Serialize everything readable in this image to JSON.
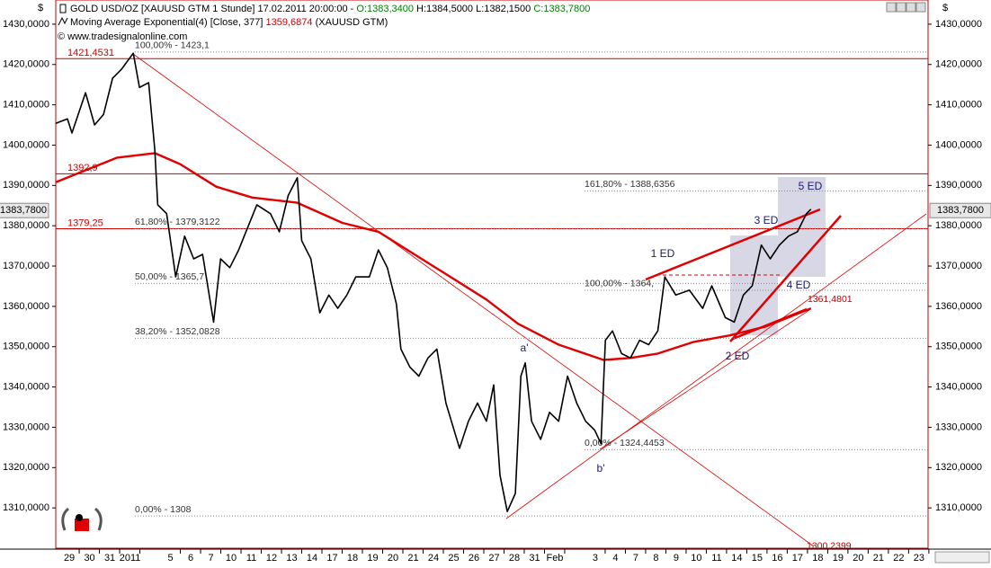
{
  "chart_data": {
    "type": "line",
    "currency": "$",
    "header": {
      "instrument": "[XAUUSD GTM  1 Stunde] 17.02.2011 20:00:00 -",
      "open": "O:1383,3400",
      "high_low": "H:1384,5000 L:1382,1500",
      "close": "C:1383,7800",
      "ma_source": "(XAUUSD GTM)",
      "copyright": "© www.tradesignalonline.com"
    },
    "ma_last": {
      "value": 1359.6874,
      "label": "1359,6874"
    },
    "last_price": {
      "value": 1383.78,
      "label": "1383,7800"
    },
    "xlim": [
      -0.67,
      42.45
    ],
    "xticks": [
      {
        "value": 0,
        "label": "29"
      },
      {
        "value": 1,
        "label": "30"
      },
      {
        "value": 2,
        "label": "31"
      },
      {
        "value": 3,
        "label": "2011"
      },
      {
        "value": 5,
        "label": "5"
      },
      {
        "value": 6,
        "label": "6"
      },
      {
        "value": 7,
        "label": "7"
      },
      {
        "value": 8,
        "label": "10"
      },
      {
        "value": 9,
        "label": "11"
      },
      {
        "value": 10,
        "label": "12"
      },
      {
        "value": 11,
        "label": "13"
      },
      {
        "value": 12,
        "label": "14"
      },
      {
        "value": 13,
        "label": "17"
      },
      {
        "value": 14,
        "label": "18"
      },
      {
        "value": 15,
        "label": "19"
      },
      {
        "value": 16,
        "label": "20"
      },
      {
        "value": 17,
        "label": "21"
      },
      {
        "value": 18,
        "label": "24"
      },
      {
        "value": 19,
        "label": "25"
      },
      {
        "value": 20,
        "label": "26"
      },
      {
        "value": 21,
        "label": "27"
      },
      {
        "value": 22,
        "label": "28"
      },
      {
        "value": 23,
        "label": "31"
      },
      {
        "value": 24,
        "label": "Feb"
      },
      {
        "value": 26,
        "label": "3"
      },
      {
        "value": 27,
        "label": "4"
      },
      {
        "value": 28,
        "label": "7"
      },
      {
        "value": 29,
        "label": "8"
      },
      {
        "value": 30,
        "label": "9"
      },
      {
        "value": 31,
        "label": "10"
      },
      {
        "value": 32,
        "label": "11"
      },
      {
        "value": 33,
        "label": "14"
      },
      {
        "value": 34,
        "label": "15"
      },
      {
        "value": 35,
        "label": "16"
      },
      {
        "value": 36,
        "label": "17"
      },
      {
        "value": 37,
        "label": "18"
      },
      {
        "value": 38,
        "label": "19"
      },
      {
        "value": 39,
        "label": "20"
      },
      {
        "value": 40,
        "label": "21"
      },
      {
        "value": 41,
        "label": "22"
      },
      {
        "value": 42,
        "label": "23"
      }
    ],
    "ylim": [
      1300,
      1436
    ],
    "yticks": [
      {
        "value": 1310,
        "label": "1310,0000"
      },
      {
        "value": 1320,
        "label": "1320,0000"
      },
      {
        "value": 1330,
        "label": "1330,0000"
      },
      {
        "value": 1340,
        "label": "1340,0000"
      },
      {
        "value": 1350,
        "label": "1350,0000"
      },
      {
        "value": 1360,
        "label": "1360,0000"
      },
      {
        "value": 1370,
        "label": "1370,0000"
      },
      {
        "value": 1380,
        "label": "1380,0000"
      },
      {
        "value": 1390,
        "label": "1390,0000"
      },
      {
        "value": 1400,
        "label": "1400,0000"
      },
      {
        "value": 1410,
        "label": "1410,0000"
      },
      {
        "value": 1420,
        "label": "1420,0000"
      },
      {
        "value": 1430,
        "label": "1430,0000"
      }
    ],
    "series": [
      {
        "name": "GOLD USD/OZ",
        "color": "#000000",
        "x": [
          -0.67,
          -0.09,
          0.13,
          0.8,
          1.25,
          1.69,
          2.14,
          2.58,
          3.16,
          3.47,
          3.92,
          4.23,
          4.37,
          4.81,
          5.26,
          5.7,
          6.15,
          6.59,
          7.13,
          7.48,
          7.93,
          8.37,
          9.27,
          9.94,
          10.38,
          10.82,
          11.27,
          11.49,
          11.94,
          12.38,
          12.83,
          13.27,
          13.72,
          14.16,
          14.83,
          15.28,
          15.72,
          16.17,
          16.39,
          16.84,
          17.28,
          17.73,
          18.17,
          18.62,
          19.29,
          19.73,
          20.18,
          20.62,
          20.98,
          21.29,
          21.65,
          22.05,
          22.32,
          22.54,
          22.85,
          23.3,
          23.74,
          24.19,
          24.63,
          25.08,
          25.52,
          25.97,
          26.28,
          26.5,
          26.85,
          27.3,
          27.74,
          28.19,
          28.64,
          29.09,
          29.44,
          29.98,
          30.65,
          31.31,
          31.76,
          32.43,
          32.87,
          33.32,
          33.76,
          34.21,
          34.65,
          35.1,
          35.55,
          35.99,
          36.44,
          36.66
        ],
        "values": [
          1405.4,
          1406.5,
          1403,
          1413,
          1405,
          1407.6,
          1416.6,
          1418.8,
          1422.8,
          1414.3,
          1415.5,
          1398.7,
          1385.2,
          1383,
          1367.3,
          1377.4,
          1371.8,
          1372.9,
          1356.1,
          1371.8,
          1369.6,
          1374,
          1385.2,
          1383,
          1378.5,
          1387.5,
          1391.9,
          1376.3,
          1371.8,
          1358.4,
          1362.8,
          1359.5,
          1362.8,
          1367.3,
          1367.3,
          1374,
          1369.6,
          1360.6,
          1349.4,
          1344.9,
          1342.7,
          1347.2,
          1349.4,
          1336,
          1324.8,
          1331.5,
          1336,
          1331.5,
          1340.5,
          1318.1,
          1309.1,
          1313.6,
          1342.7,
          1346,
          1331.5,
          1327,
          1333.7,
          1331.5,
          1342.7,
          1336,
          1331.5,
          1329.3,
          1325.9,
          1351.6,
          1353.9,
          1348.3,
          1347.2,
          1351.6,
          1350.5,
          1353.9,
          1367.3,
          1362.8,
          1364,
          1359.5,
          1365.1,
          1357.2,
          1356.1,
          1362.8,
          1365.1,
          1375.2,
          1371.8,
          1375.2,
          1377.4,
          1378.5,
          1383,
          1384.1
        ]
      },
      {
        "name": "Moving Average Exponential(4) [Close, 377]",
        "color": "#e00000",
        "x": [
          -0.67,
          1.02,
          2.36,
          4.23,
          5.48,
          7.26,
          9.04,
          11.27,
          13.5,
          15.28,
          17.06,
          18.84,
          20.62,
          22.18,
          24.19,
          26.41,
          27.74,
          29.09,
          30.87,
          32.65,
          34.43,
          36.66
        ],
        "values": [
          1390.8,
          1394.2,
          1396.9,
          1398,
          1395.3,
          1389.7,
          1387,
          1385.7,
          1380.7,
          1378.5,
          1372.9,
          1367.3,
          1361.7,
          1355.7,
          1350.5,
          1346.7,
          1347.2,
          1348.3,
          1351.2,
          1352.8,
          1355,
          1359.5
        ]
      }
    ],
    "levels": [
      {
        "value": 1421.4531,
        "label": "1421,4531"
      },
      {
        "value": 1392.9,
        "label": "1392,9"
      },
      {
        "value": 1379.25,
        "label": "1379,25"
      }
    ],
    "level_color": "#d00000",
    "fib_left": [
      {
        "value": 1423.1,
        "label": "100,00% - 1423,1"
      },
      {
        "value": 1379.3122,
        "label": "61,80% - 1379,3122"
      },
      {
        "value": 1365.7,
        "label": "50,00% - 1365,7"
      },
      {
        "value": 1352.0828,
        "label": "38,20% - 1352,0828"
      },
      {
        "value": 1308,
        "label": "0,00% - 1308"
      }
    ],
    "fib_right": [
      {
        "value": 1388.6356,
        "label": "161,80% - 1388,6356"
      },
      {
        "value": 1364,
        "label": "100,00% - 1364,"
      },
      {
        "value": 1324.4453,
        "label": "0,00% - 1324,4453"
      }
    ],
    "line_end_labels": [
      {
        "value": 1300.2399,
        "label": "1300,2399"
      },
      {
        "value": 1361.4801,
        "label": "1361,4801"
      }
    ],
    "wave_labels": [
      "a'",
      "b'",
      "1 ED",
      "2 ED",
      "3 ED",
      "4 ED",
      "5 ED"
    ]
  }
}
